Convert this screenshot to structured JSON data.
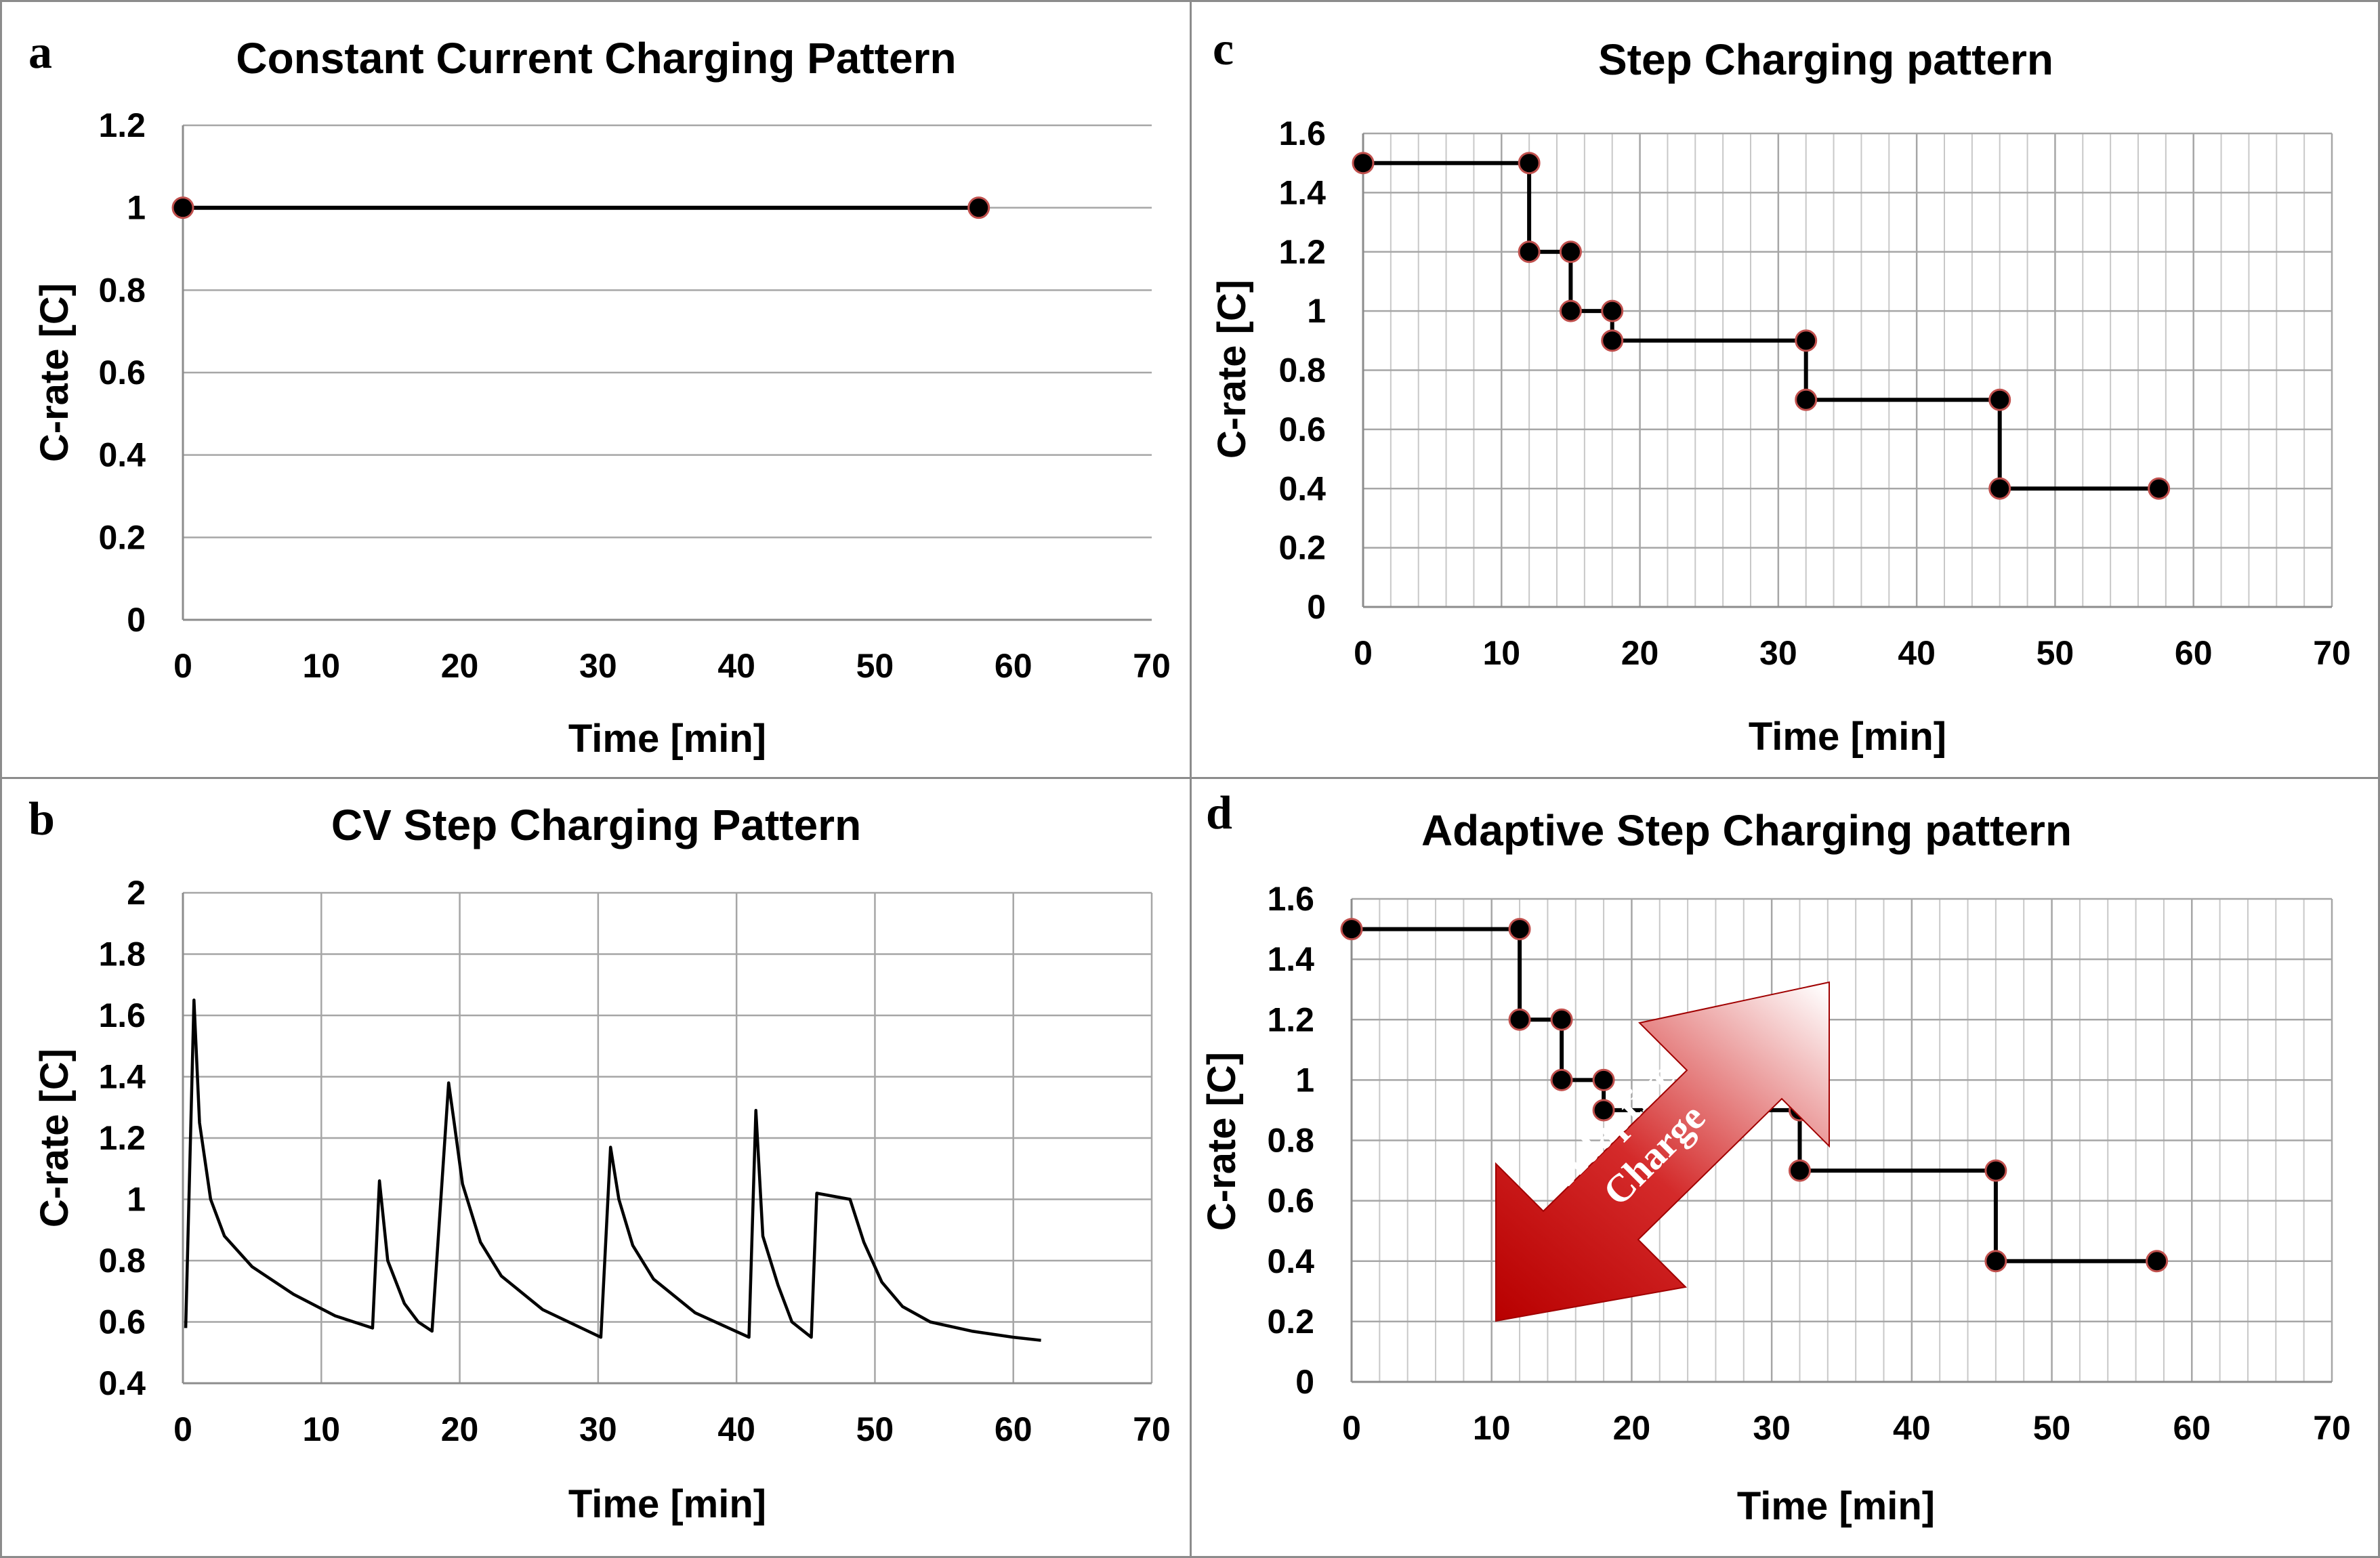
{
  "chart_data": [
    {
      "panel": "a",
      "type": "line",
      "title": "Constant Current Charging Pattern",
      "xlabel": "Time [min]",
      "ylabel": "C-rate [C]",
      "xlim": [
        0,
        70
      ],
      "ylim": [
        0,
        1.2
      ],
      "xticks": [
        0,
        10,
        20,
        30,
        40,
        50,
        60,
        70
      ],
      "yticks": [
        0,
        0.2,
        0.4,
        0.6,
        0.8,
        1,
        1.2
      ],
      "grid": "horizontal",
      "series": [
        {
          "x": [
            0,
            57.5
          ],
          "y": [
            1,
            1
          ],
          "markers": true
        }
      ]
    },
    {
      "panel": "b",
      "type": "line",
      "title": "CV Step Charging Pattern",
      "xlabel": "Time [min]",
      "ylabel": "C-rate [C]",
      "xlim": [
        0,
        70
      ],
      "ylim": [
        0.4,
        2
      ],
      "xticks": [
        0,
        10,
        20,
        30,
        40,
        50,
        60,
        70
      ],
      "yticks": [
        0.4,
        0.6,
        0.8,
        1,
        1.2,
        1.4,
        1.6,
        1.8,
        2
      ],
      "grid": "major",
      "series": [
        {
          "x": [
            0.2,
            0.8,
            1.2,
            2,
            3,
            5,
            8,
            11,
            13.7,
            14.2,
            14.8,
            16,
            17,
            18,
            19.2,
            19.6,
            20.2,
            21.5,
            23,
            26,
            30.2,
            30.9,
            31.5,
            32.5,
            34,
            37,
            40.9,
            41.4,
            41.9,
            43,
            44,
            45.4,
            45.8,
            48.2,
            49.2,
            50.5,
            52,
            54,
            57,
            60,
            62
          ],
          "y": [
            0.58,
            1.65,
            1.25,
            1.0,
            0.88,
            0.78,
            0.69,
            0.62,
            0.58,
            1.06,
            0.8,
            0.66,
            0.6,
            0.57,
            1.38,
            1.25,
            1.05,
            0.86,
            0.75,
            0.64,
            0.55,
            1.17,
            1.0,
            0.85,
            0.74,
            0.63,
            0.55,
            1.29,
            0.88,
            0.72,
            0.6,
            0.55,
            1.02,
            1.0,
            0.86,
            0.73,
            0.65,
            0.6,
            0.57,
            0.55,
            0.54
          ],
          "markers": false
        }
      ]
    },
    {
      "panel": "c",
      "type": "line",
      "title": "Step Charging pattern",
      "xlabel": "Time [min]",
      "ylabel": "C-rate [C]",
      "xlim": [
        0,
        70
      ],
      "ylim": [
        0,
        1.6
      ],
      "xticks": [
        0,
        10,
        20,
        30,
        40,
        50,
        60,
        70
      ],
      "yticks": [
        0,
        0.2,
        0.4,
        0.6,
        0.8,
        1,
        1.2,
        1.4,
        1.6
      ],
      "grid": "major-minor",
      "series": [
        {
          "x": [
            0,
            12,
            12,
            15,
            15,
            18,
            18,
            32,
            32,
            46,
            46,
            57.5
          ],
          "y": [
            1.5,
            1.5,
            1.2,
            1.2,
            1.0,
            1.0,
            0.9,
            0.9,
            0.7,
            0.7,
            0.4,
            0.4
          ],
          "markers": true
        }
      ]
    },
    {
      "panel": "d",
      "type": "line",
      "title": "Adaptive Step Charging pattern",
      "xlabel": "Time [min]",
      "ylabel": "C-rate [C]",
      "xlim": [
        0,
        70
      ],
      "ylim": [
        0,
        1.6
      ],
      "xticks": [
        0,
        10,
        20,
        30,
        40,
        50,
        60,
        70
      ],
      "yticks": [
        0,
        0.2,
        0.4,
        0.6,
        0.8,
        1,
        1.2,
        1.4,
        1.6
      ],
      "grid": "major-minor",
      "series": [
        {
          "x": [
            0,
            12,
            12,
            15,
            15,
            18,
            18,
            32,
            32,
            46,
            46,
            57.5
          ],
          "y": [
            1.5,
            1.5,
            1.2,
            1.2,
            1.0,
            1.0,
            0.9,
            0.9,
            0.7,
            0.7,
            0.4,
            0.4
          ],
          "markers": true
        }
      ],
      "annotation": {
        "lines": [
          "Adaptive",
          "Charge"
        ],
        "shape": "double-headed arrow",
        "color": "#c00000"
      }
    }
  ],
  "colors": {
    "line": "#000000",
    "marker_fill": "#000000",
    "marker_edge": "#c0504d",
    "grid": "#a6a6a6",
    "arrow_dark": "#b80000",
    "arrow_light": "#ffffff",
    "border": "#8c8c8c"
  }
}
